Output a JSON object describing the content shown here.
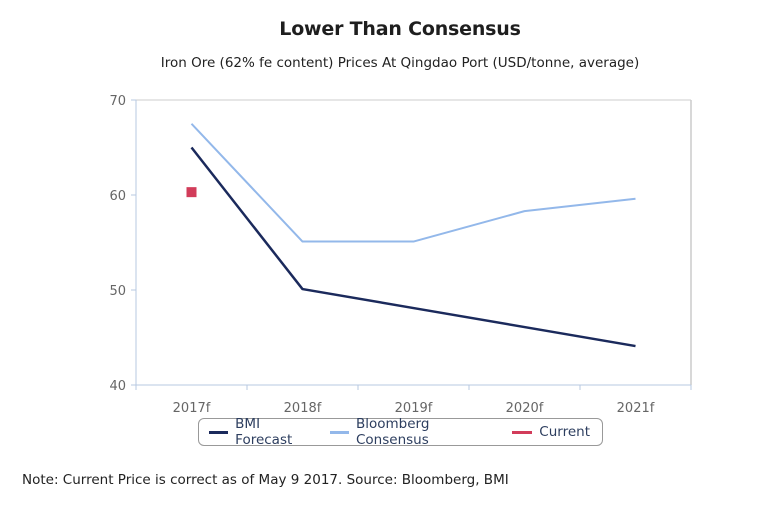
{
  "colors": {
    "bmi": "#1b2a5c",
    "bloomberg": "#93b8ea",
    "current": "#d23c5a",
    "axis": "#b7c9e2",
    "frame": "#cccccc"
  },
  "legend": [
    {
      "label": "BMI Forecast",
      "color": "#1b2a5c"
    },
    {
      "label": "Bloomberg Consensus",
      "color": "#93b8ea"
    },
    {
      "label": "Current",
      "color": "#d23c5a"
    }
  ],
  "note": "Note: Current Price is correct as of May 9 2017. Source: Bloomberg, BMI",
  "chart_data": {
    "type": "line",
    "title": "Lower Than Consensus",
    "subtitle": "Iron Ore (62% fe content) Prices At Qingdao Port (USD/tonne, average)",
    "xlabel": "",
    "ylabel": "",
    "categories": [
      "2017f",
      "2018f",
      "2019f",
      "2020f",
      "2021f"
    ],
    "ylim": [
      40,
      70
    ],
    "yticks": [
      40,
      50,
      60,
      70
    ],
    "grid": false,
    "legend_position": "bottom",
    "series": [
      {
        "name": "BMI Forecast",
        "type": "line",
        "color": "#1b2a5c",
        "values": [
          65.0,
          50.1,
          48.1,
          46.1,
          44.1
        ]
      },
      {
        "name": "Bloomberg Consensus",
        "type": "line",
        "color": "#93b8ea",
        "values": [
          67.5,
          55.1,
          55.1,
          58.3,
          59.6
        ]
      },
      {
        "name": "Current",
        "type": "marker",
        "color": "#d23c5a",
        "values": [
          60.3,
          null,
          null,
          null,
          null
        ]
      }
    ]
  }
}
